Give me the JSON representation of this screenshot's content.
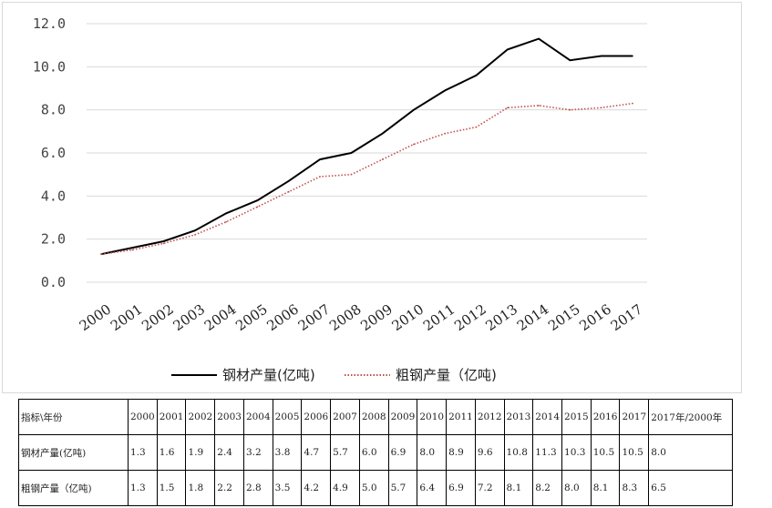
{
  "chart_data": {
    "type": "line",
    "categories": [
      "2000",
      "2001",
      "2002",
      "2003",
      "2004",
      "2005",
      "2006",
      "2007",
      "2008",
      "2009",
      "2010",
      "2011",
      "2012",
      "2013",
      "2014",
      "2015",
      "2016",
      "2017"
    ],
    "series": [
      {
        "name": "钢材产量(亿吨)",
        "values": [
          1.3,
          1.6,
          1.9,
          2.4,
          3.2,
          3.8,
          4.7,
          5.7,
          6.0,
          6.9,
          8.0,
          8.9,
          9.6,
          10.8,
          11.3,
          10.3,
          10.5,
          10.5
        ],
        "color": "#000000",
        "style": "solid"
      },
      {
        "name": "粗钢产量（亿吨)",
        "values": [
          1.3,
          1.5,
          1.8,
          2.2,
          2.8,
          3.5,
          4.2,
          4.9,
          5.0,
          5.7,
          6.4,
          6.9,
          7.2,
          8.1,
          8.2,
          8.0,
          8.1,
          8.3
        ],
        "color": "#c0504d",
        "style": "dotted"
      }
    ],
    "ylim": [
      0,
      12
    ],
    "yticks": [
      "0.0",
      "2.0",
      "4.0",
      "6.0",
      "8.0",
      "10.0",
      "12.0"
    ],
    "grid": true,
    "legend_position": "bottom"
  },
  "table": {
    "header": [
      "指标\\年份",
      "2000",
      "2001",
      "2002",
      "2003",
      "2004",
      "2005",
      "2006",
      "2007",
      "2008",
      "2009",
      "2010",
      "2011",
      "2012",
      "2013",
      "2014",
      "2015",
      "2016",
      "2017",
      "2017年/2000年"
    ],
    "rows": [
      [
        "钢材产量(亿吨)",
        "1.3",
        "1.6",
        "1.9",
        "2.4",
        "3.2",
        "3.8",
        "4.7",
        "5.7",
        "6.0",
        "6.9",
        "8.0",
        "8.9",
        "9.6",
        "10.8",
        "11.3",
        "10.3",
        "10.5",
        "10.5",
        "8.0"
      ],
      [
        "粗钢产量（亿吨)",
        "1.3",
        "1.5",
        "1.8",
        "2.2",
        "2.8",
        "3.5",
        "4.2",
        "4.9",
        "5.0",
        "5.7",
        "6.4",
        "6.9",
        "7.2",
        "8.1",
        "8.2",
        "8.0",
        "8.1",
        "8.3",
        "6.5"
      ]
    ]
  }
}
